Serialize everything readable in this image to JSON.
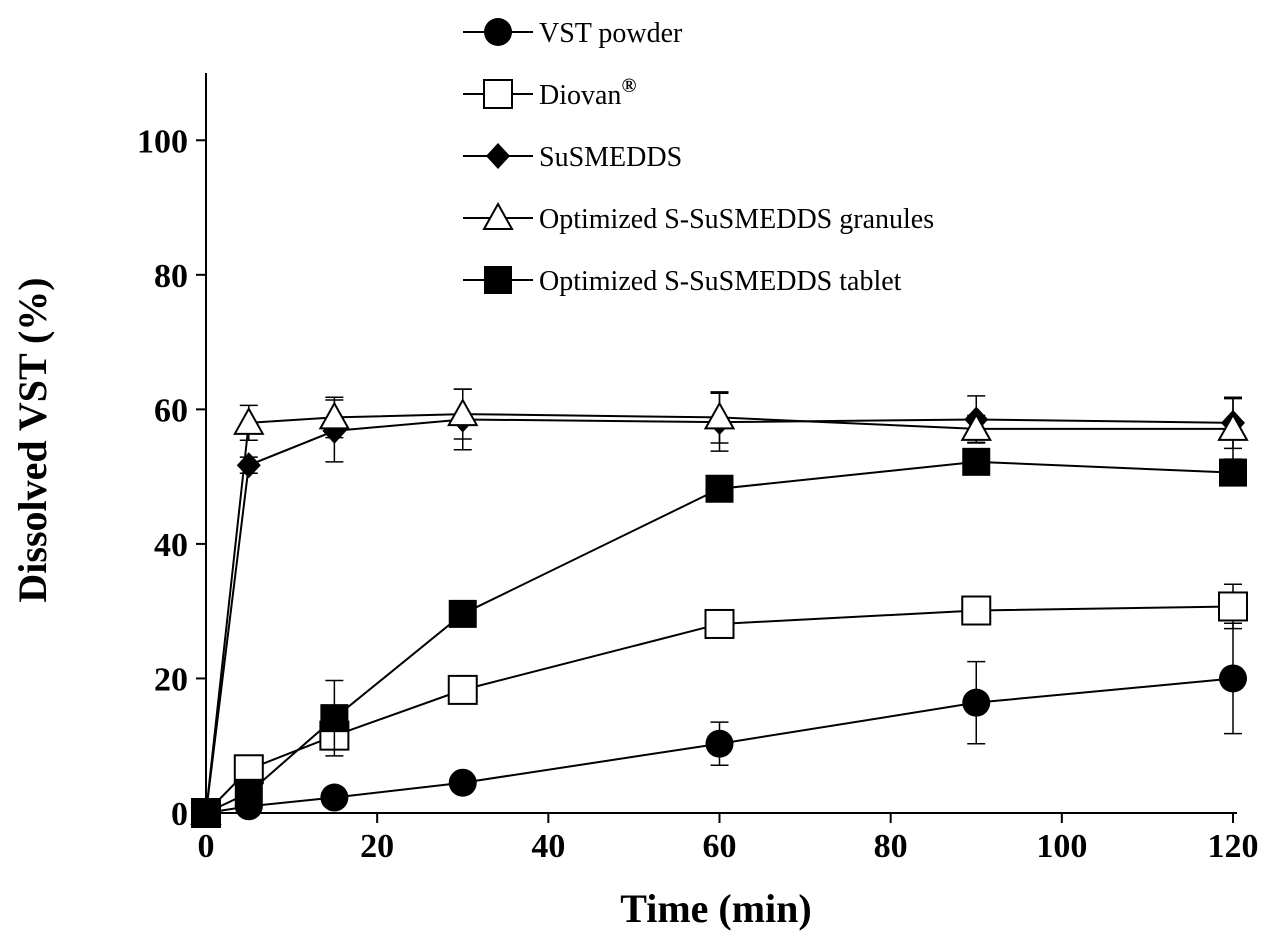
{
  "chart_data": {
    "type": "line",
    "title": "",
    "xlabel": "Time (min)",
    "ylabel": "Dissolved VST (%)",
    "xlim": [
      0,
      120
    ],
    "ylim": [
      0,
      110
    ],
    "x_ticks": [
      0,
      20,
      40,
      60,
      80,
      100,
      120
    ],
    "y_ticks": [
      0,
      20,
      40,
      60,
      80,
      100
    ],
    "grid": false,
    "legend_position": "top",
    "series": [
      {
        "name": "VST powder",
        "marker": "filled-circle",
        "points": [
          [
            0,
            0
          ],
          [
            5,
            1
          ],
          [
            15,
            2.3
          ],
          [
            30,
            4.5
          ],
          [
            60,
            10.3
          ],
          [
            90,
            16.4
          ],
          [
            120,
            20
          ]
        ],
        "errors": [
          0,
          0.5,
          0.5,
          0.8,
          3.2,
          6.1,
          8.2
        ]
      },
      {
        "name": "Diovan",
        "name_sup": "®",
        "marker": "open-square",
        "points": [
          [
            0,
            0
          ],
          [
            5,
            6.5
          ],
          [
            15,
            11.5
          ],
          [
            30,
            18.3
          ],
          [
            60,
            28.1
          ],
          [
            90,
            30.1
          ],
          [
            120,
            30.7
          ]
        ],
        "errors": [
          0,
          0.6,
          1.2,
          1.0,
          0.8,
          1.0,
          3.3
        ]
      },
      {
        "name": "SuSMEDDS",
        "marker": "filled-diamond",
        "points": [
          [
            0,
            0
          ],
          [
            5,
            51.7
          ],
          [
            15,
            56.8
          ],
          [
            30,
            58.5
          ],
          [
            60,
            58.1
          ],
          [
            90,
            58.5
          ],
          [
            120,
            58
          ]
        ],
        "errors": [
          0,
          1.2,
          4.6,
          4.5,
          4.3,
          3.5,
          3.8
        ]
      },
      {
        "name": "Optimized S-SuSMEDDS granules",
        "marker": "open-triangle",
        "points": [
          [
            0,
            0
          ],
          [
            5,
            58
          ],
          [
            15,
            58.8
          ],
          [
            30,
            59.3
          ],
          [
            60,
            58.8
          ],
          [
            90,
            57.1
          ],
          [
            120,
            57.1
          ]
        ],
        "errors": [
          0,
          2.6,
          3.0,
          3.7,
          3.8,
          2.0,
          4.5
        ]
      },
      {
        "name": "Optimized S-SuSMEDDS tablet",
        "marker": "filled-square",
        "points": [
          [
            0,
            0
          ],
          [
            5,
            3
          ],
          [
            15,
            14.1
          ],
          [
            30,
            29.6
          ],
          [
            60,
            48.2
          ],
          [
            90,
            52.2
          ],
          [
            120,
            50.6
          ]
        ],
        "errors": [
          0,
          0.5,
          5.6,
          1.0,
          0.8,
          1.0,
          0.8
        ]
      }
    ]
  }
}
